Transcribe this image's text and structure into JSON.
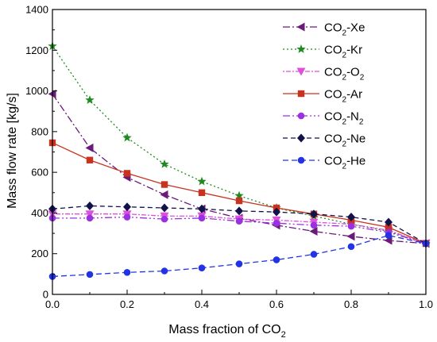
{
  "chart_data": {
    "type": "line",
    "xlabel": "Mass fraction of CO",
    "xlabel_sub": "2",
    "ylabel": "Mass flow rate [kg/s]",
    "xlim": [
      0,
      1
    ],
    "ylim": [
      0,
      1400
    ],
    "xticks": [
      "0.0",
      "0.2",
      "0.4",
      "0.6",
      "0.8",
      "1.0"
    ],
    "yticks": [
      "0",
      "200",
      "400",
      "600",
      "800",
      "1000",
      "1200",
      "1400"
    ],
    "grid": false,
    "legend_position": "top-right",
    "x": [
      0.0,
      0.1,
      0.2,
      0.3,
      0.4,
      0.5,
      0.6,
      0.7,
      0.8,
      0.9,
      1.0
    ],
    "series": [
      {
        "name": "CO2-Xe",
        "label_main": "CO",
        "label_sub": "2",
        "label_tail": "-Xe",
        "sub_at_end": false,
        "color": "#6a1b7a",
        "dash": "9,3,2,3",
        "marker": "triangle-left",
        "values": [
          985,
          720,
          575,
          490,
          420,
          375,
          340,
          310,
          285,
          265,
          250
        ]
      },
      {
        "name": "CO2-Kr",
        "label_main": "CO",
        "label_sub": "2",
        "label_tail": "-Kr",
        "sub_at_end": false,
        "color": "#1f8a1f",
        "dash": "2,3",
        "marker": "star",
        "values": [
          1220,
          955,
          770,
          640,
          555,
          485,
          425,
          385,
          345,
          310,
          250
        ]
      },
      {
        "name": "CO2-O2",
        "label_main": "CO",
        "label_sub": "2",
        "label_tail": "-O",
        "label_tail_sub": "2",
        "sub_at_end": true,
        "color": "#e04ee0",
        "dash": "2,2,6,2",
        "marker": "triangle-down",
        "values": [
          395,
          395,
          395,
          385,
          385,
          370,
          365,
          355,
          345,
          315,
          250
        ]
      },
      {
        "name": "CO2-Ar",
        "label_main": "CO",
        "label_sub": "2",
        "label_tail": "-Ar",
        "sub_at_end": false,
        "color": "#c8321e",
        "dash": "",
        "marker": "square",
        "values": [
          745,
          660,
          595,
          540,
          500,
          460,
          425,
          395,
          365,
          330,
          250
        ]
      },
      {
        "name": "CO2-N2",
        "label_main": "CO",
        "label_sub": "2",
        "label_tail": "-N",
        "label_tail_sub": "2",
        "sub_at_end": true,
        "color": "#9b30e0",
        "dash": "9,3,2,3,2,3",
        "marker": "circle",
        "values": [
          375,
          375,
          380,
          370,
          375,
          360,
          350,
          340,
          335,
          305,
          250
        ]
      },
      {
        "name": "CO2-Ne",
        "label_main": "CO",
        "label_sub": "2",
        "label_tail": "-Ne",
        "sub_at_end": false,
        "color": "#12124a",
        "dash": "6,4",
        "marker": "diamond",
        "values": [
          420,
          435,
          430,
          425,
          420,
          410,
          405,
          395,
          380,
          355,
          250
        ]
      },
      {
        "name": "CO2-He",
        "label_main": "CO",
        "label_sub": "2",
        "label_tail": "-He",
        "sub_at_end": false,
        "color": "#2233e6",
        "dash": "7,4",
        "marker": "circle",
        "values": [
          88,
          98,
          108,
          115,
          130,
          150,
          170,
          197,
          235,
          290,
          250
        ]
      }
    ]
  }
}
